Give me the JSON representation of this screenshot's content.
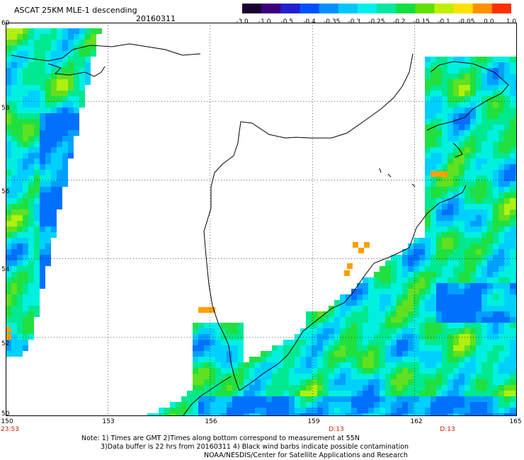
{
  "header": {
    "title": "ASCAT 25KM MLE-1 descending",
    "date": "20160311"
  },
  "colorbar": {
    "colors": [
      "#1a0030",
      "#3a0080",
      "#2020d0",
      "#0050ff",
      "#0090ff",
      "#00c8ff",
      "#00f0f0",
      "#00e8a0",
      "#10e040",
      "#60e000",
      "#c0f000",
      "#ffe000",
      "#ff9000",
      "#ff3000"
    ],
    "labels": [
      "-3.0",
      "-1.0",
      "-0.5",
      "-0.4",
      "-0.35",
      "-0.3",
      "-0.25",
      "-0.2",
      "-0.15",
      "-0.1",
      "-0.05",
      "0.0",
      "1.0"
    ]
  },
  "map": {
    "lon_range": [
      150,
      165
    ],
    "lat_range": [
      50,
      60
    ],
    "lat_ticks": [
      "60",
      "58",
      "56",
      "54",
      "52",
      "50"
    ],
    "lon_ticks": [
      "150",
      "153",
      "156",
      "159",
      "162",
      "165"
    ],
    "time_labels": [
      {
        "lon": 150,
        "text": "23:53"
      },
      {
        "lon": 159.6,
        "text": "D:13"
      },
      {
        "lon": 163.0,
        "text": "D:13"
      }
    ]
  },
  "notes": {
    "line1": "Note: 1) Times are GMT 2)Times along bottom correspond to measurement at 55N",
    "line2": "3)Data buffer is 22 hrs from 20160311 4) Black wind barbs indicate possible contamination",
    "line3": "NOAA/NESDIS/Center for Satellite Applications and Research"
  }
}
